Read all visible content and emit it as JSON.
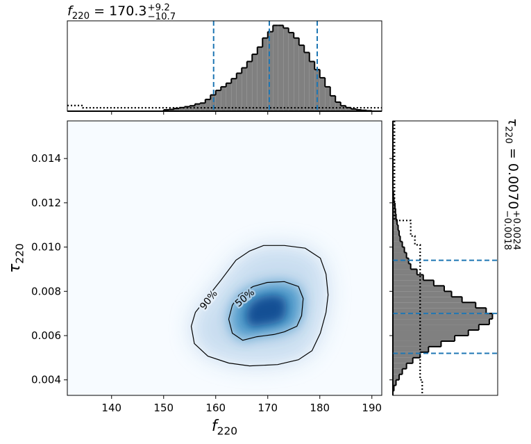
{
  "chart_data": [
    {
      "type": "heatmap",
      "xlabel": {
        "symbol": "f",
        "subscript": "220"
      },
      "ylabel": {
        "symbol": "τ",
        "subscript": "220"
      },
      "xlim": [
        131.5,
        191.9
      ],
      "ylim": [
        0.0033,
        0.0157
      ],
      "xticks": [
        140,
        150,
        160,
        170,
        180,
        190
      ],
      "yticks": [
        0.004,
        0.006,
        0.008,
        {
          "value": 0.01,
          "label": "0.010"
        },
        0.012,
        0.014
      ],
      "colormap": "Blues",
      "contours": [
        {
          "label": "90%",
          "x": [
            160.9,
            163.9,
            166.5,
            169.2,
            173.2,
            177.2,
            180.1,
            181.2,
            181.6,
            181.2,
            180.1,
            178.5,
            175.9,
            171.9,
            166.5,
            162.5,
            158.5,
            155.9,
            155.3,
            156.1
          ],
          "y": [
            0.00847,
            0.00941,
            0.00982,
            0.01007,
            0.01007,
            0.00995,
            0.0095,
            0.00878,
            0.00784,
            0.00705,
            0.00611,
            0.00532,
            0.00491,
            0.00469,
            0.00463,
            0.00476,
            0.00507,
            0.00564,
            0.00642,
            0.00705
          ]
        },
        {
          "label": "50%",
          "x": [
            167.2,
            169.9,
            173.2,
            175.9,
            176.8,
            176.5,
            175.6,
            173.2,
            171.2,
            167.9,
            165.2,
            163.2,
            162.5,
            163.2,
            164.5
          ],
          "y": [
            0.00822,
            0.0084,
            0.00844,
            0.00822,
            0.00768,
            0.0069,
            0.00642,
            0.00617,
            0.00605,
            0.00595,
            0.00579,
            0.00611,
            0.00674,
            0.00737,
            0.00784
          ]
        }
      ]
    },
    {
      "type": "histogram",
      "orientation": "vertical",
      "title": {
        "symbol": "f",
        "subscript": "220",
        "text": " = 170.3",
        "upper": "+9.2",
        "lower": "−10.7"
      },
      "xlim": [
        131.5,
        191.9
      ],
      "ylim": [
        0,
        100
      ],
      "bins": [
        150,
        151,
        152,
        153,
        154,
        155,
        156,
        157,
        158,
        159,
        160,
        161,
        162,
        163,
        164,
        165,
        166,
        167,
        168,
        169,
        170,
        171,
        172,
        173,
        174,
        175,
        176,
        177,
        178,
        179,
        180,
        181,
        182,
        183,
        184,
        185,
        186,
        187,
        188,
        189,
        190
      ],
      "values": [
        1.5,
        2,
        3,
        4,
        5,
        6,
        8,
        9,
        13,
        18,
        23,
        27,
        31,
        36,
        42,
        48,
        55,
        63,
        71,
        81,
        88,
        95,
        95,
        92,
        87,
        81,
        73,
        65,
        55,
        46,
        37,
        27,
        17,
        10,
        6,
        4,
        2.5,
        1.5,
        1,
        0.5
      ],
      "color": "#808080",
      "prior": {
        "x": [
          131.5,
          134.5,
          134.5,
          191.9
        ],
        "values": [
          6.2,
          6.2,
          3.8,
          3.8
        ]
      },
      "quantiles": [
        159.6,
        170.3,
        179.5
      ],
      "quantile_color": "#1f77b4"
    },
    {
      "type": "histogram",
      "orientation": "horizontal",
      "title": {
        "symbol": "τ",
        "subscript": "220",
        "text": " = 0.0070",
        "upper": "+0.0024",
        "lower": "−0.0018"
      },
      "xlim": [
        0,
        100
      ],
      "ylim": [
        0.0033,
        0.0157
      ],
      "bins": [
        0.0035,
        0.00375,
        0.004,
        0.00425,
        0.0045,
        0.00475,
        0.005,
        0.00525,
        0.0055,
        0.00575,
        0.006,
        0.00625,
        0.0065,
        0.00675,
        0.007,
        0.00725,
        0.0075,
        0.00775,
        0.008,
        0.00825,
        0.0085,
        0.00875,
        0.009,
        0.00925,
        0.0095,
        0.00975,
        0.01,
        0.01025,
        0.0105,
        0.01075,
        0.011,
        0.01125,
        0.0115,
        0.01175,
        0.012,
        0.01225,
        0.0125
      ],
      "values": [
        1,
        3,
        6,
        9,
        13,
        19,
        26,
        34,
        46,
        59,
        72,
        82,
        92,
        95,
        89,
        79,
        66,
        56,
        49,
        39,
        29,
        23,
        17,
        15,
        13,
        11,
        9,
        7,
        6,
        5,
        4,
        3,
        2.5,
        2,
        1,
        0.5
      ],
      "color": "#808080",
      "prior": {
        "x": [
          0.0157,
          0.0112,
          0.0112,
          0.0105,
          0.0105,
          0.0101,
          0.0101,
          0.004,
          0.004,
          0.0033
        ],
        "values": [
          1.5,
          1.5,
          17,
          17,
          21,
          21,
          26,
          26,
          28,
          28
        ]
      },
      "quantiles": [
        0.0052,
        0.007,
        0.0094
      ],
      "quantile_color": "#1f77b4"
    }
  ]
}
